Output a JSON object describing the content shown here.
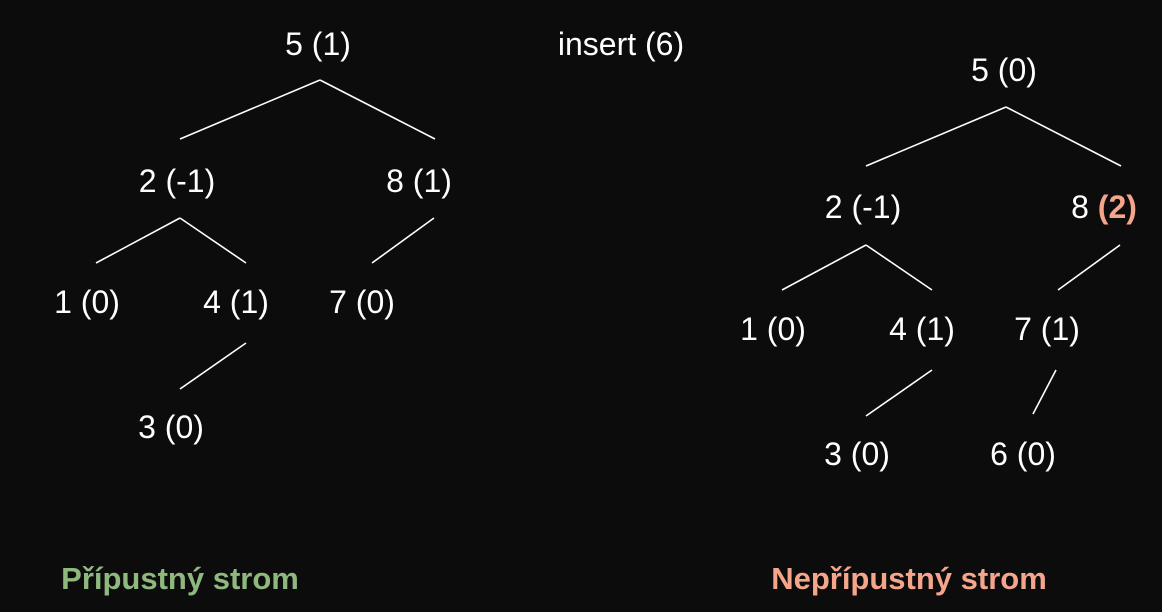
{
  "operation": "insert (6)",
  "colors": {
    "background": "#0c0c0c",
    "text": "#ffffff",
    "valid": "#8fb87f",
    "invalid": "#f4a58a"
  },
  "left_tree": {
    "caption": "Přípustný strom",
    "nodes": {
      "n5": {
        "key": "5",
        "bf": "(1)"
      },
      "n2": {
        "key": "2",
        "bf": "(-1)"
      },
      "n8": {
        "key": "8",
        "bf": "(1)"
      },
      "n1": {
        "key": "1",
        "bf": "(0)"
      },
      "n4": {
        "key": "4",
        "bf": "(1)"
      },
      "n7": {
        "key": "7",
        "bf": "(0)"
      },
      "n3": {
        "key": "3",
        "bf": "(0)"
      }
    }
  },
  "right_tree": {
    "caption": "Nepřípustný strom",
    "nodes": {
      "n5": {
        "key": "5",
        "bf": "(0)"
      },
      "n2": {
        "key": "2",
        "bf": "(-1)"
      },
      "n8": {
        "key": "8",
        "bf": "(2)",
        "highlight": true
      },
      "n1": {
        "key": "1",
        "bf": "(0)"
      },
      "n4": {
        "key": "4",
        "bf": "(1)"
      },
      "n7": {
        "key": "7",
        "bf": "(1)"
      },
      "n3": {
        "key": "3",
        "bf": "(0)"
      },
      "n6": {
        "key": "6",
        "bf": "(0)"
      }
    }
  }
}
